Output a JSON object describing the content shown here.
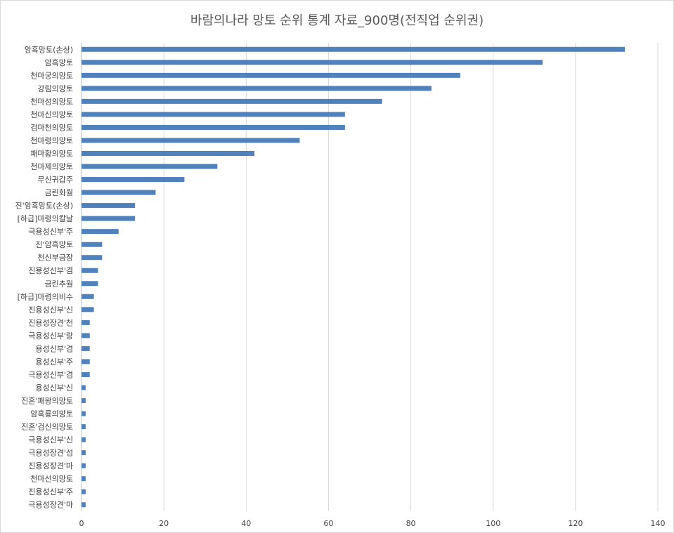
{
  "chart_data": {
    "type": "bar",
    "orientation": "horizontal",
    "title": "바람의나라 망토 순위 통계 자료_900명(전직업 순위권)",
    "xlabel": "",
    "ylabel": "",
    "xlim": [
      0,
      140
    ],
    "xticks": [
      "0",
      "20",
      "40",
      "60",
      "80",
      "100",
      "120",
      "140"
    ],
    "grid": true,
    "legend": "none",
    "bar_color": "#4f81bd",
    "categories": [
      "암흑망토(손상)",
      "암흑망토",
      "천마궁의망토",
      "강림의망토",
      "천마성의망토",
      "천마신의망토",
      "검마천의망토",
      "천마령의망토",
      "패마황의망토",
      "천마제의망토",
      "무신귀갑주",
      "금린화월",
      "진'암흑망토(손상)",
      "[하급]마령의칼날",
      "극용성신부'주",
      "진'암흑망토",
      "천신부금장",
      "진용성신부'겸",
      "금린추월",
      "[하급]마령의비수",
      "진용성신부'신",
      "진용성장견'천",
      "극용성신부'랑",
      "용성신부'겸",
      "용성신부'주",
      "극용성신부'겸",
      "용성신부'신",
      "진혼'패왕의망토",
      "암흑룡의망토",
      "진혼'검신의망토",
      "극용성신부'신",
      "극용성장견'섬",
      "진용성장견'마",
      "천마선의망토",
      "진용성신부'주",
      "극용성장견'마"
    ],
    "values": [
      132,
      112,
      92,
      85,
      73,
      64,
      64,
      53,
      42,
      33,
      25,
      18,
      13,
      13,
      9,
      5,
      5,
      4,
      4,
      3,
      3,
      2,
      2,
      2,
      2,
      2,
      1,
      1,
      1,
      1,
      1,
      1,
      1,
      1,
      1,
      1
    ]
  }
}
